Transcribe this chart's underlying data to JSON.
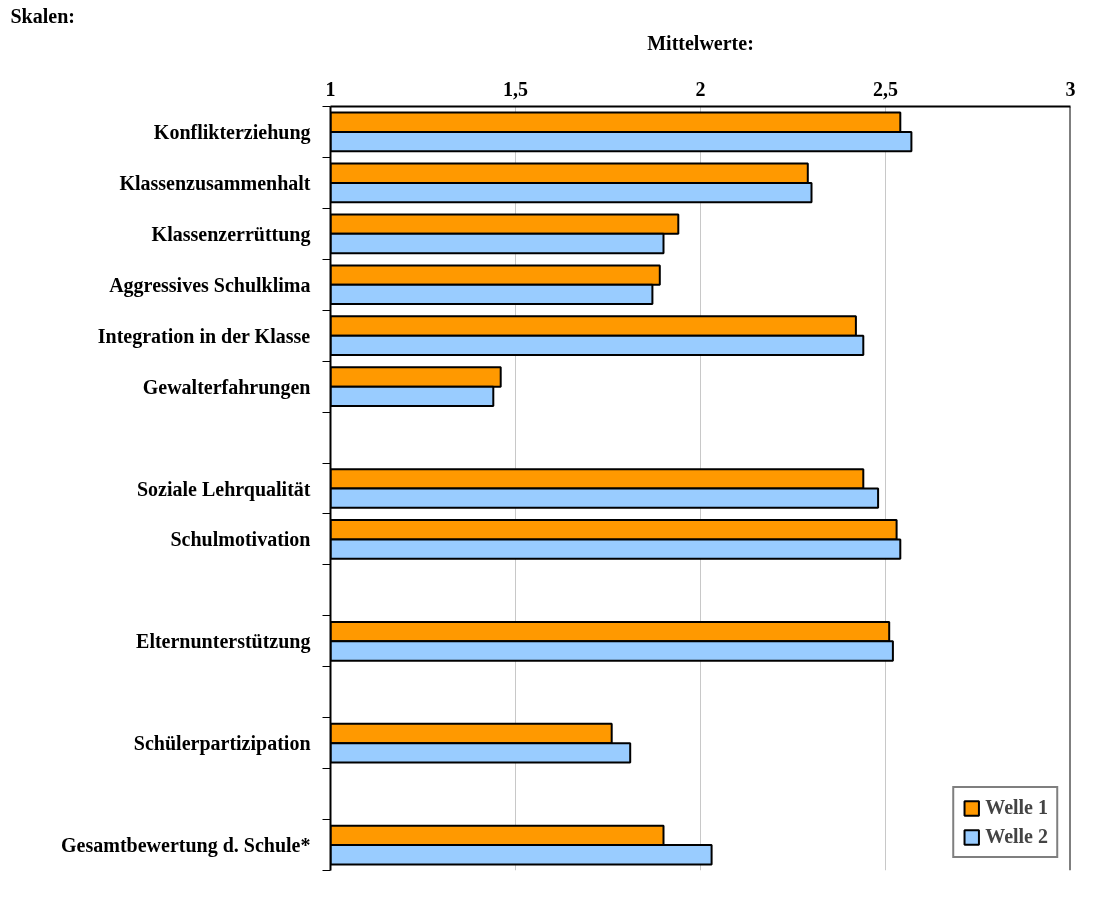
{
  "chart_data": {
    "type": "bar",
    "orientation": "horizontal",
    "xlabel": "Mittelwerte:",
    "ylabel": "Skalen:",
    "categories": [
      "Konflikterziehung",
      "Klassenzusammenhalt",
      "Klassenzerrüttung",
      "Aggressives Schulklima",
      "Integration in der Klasse",
      "Gewalterfahrungen",
      null,
      "Soziale Lehrqualität",
      "Schulmotivation",
      null,
      "Elternunterstützung",
      null,
      "Schülerpartizipation",
      null,
      "Gesamtbewertung d. Schule*"
    ],
    "series": [
      {
        "name": "Welle 1",
        "color": "#ff9900",
        "values": [
          2.54,
          2.29,
          1.94,
          1.89,
          2.42,
          1.46,
          null,
          2.44,
          2.53,
          null,
          2.51,
          null,
          1.76,
          null,
          1.9
        ]
      },
      {
        "name": "Welle 2",
        "color": "#99ccff",
        "values": [
          2.57,
          2.3,
          1.9,
          1.87,
          2.44,
          1.44,
          null,
          2.48,
          2.54,
          null,
          2.52,
          null,
          1.81,
          null,
          2.03
        ]
      }
    ],
    "xlim": [
      1,
      3
    ],
    "xticks": [
      1,
      {
        "value": 1.5,
        "label": "1,5"
      },
      2,
      {
        "value": 2.5,
        "label": "2,5"
      },
      3
    ],
    "grid": "x",
    "legend": "bottom right"
  }
}
